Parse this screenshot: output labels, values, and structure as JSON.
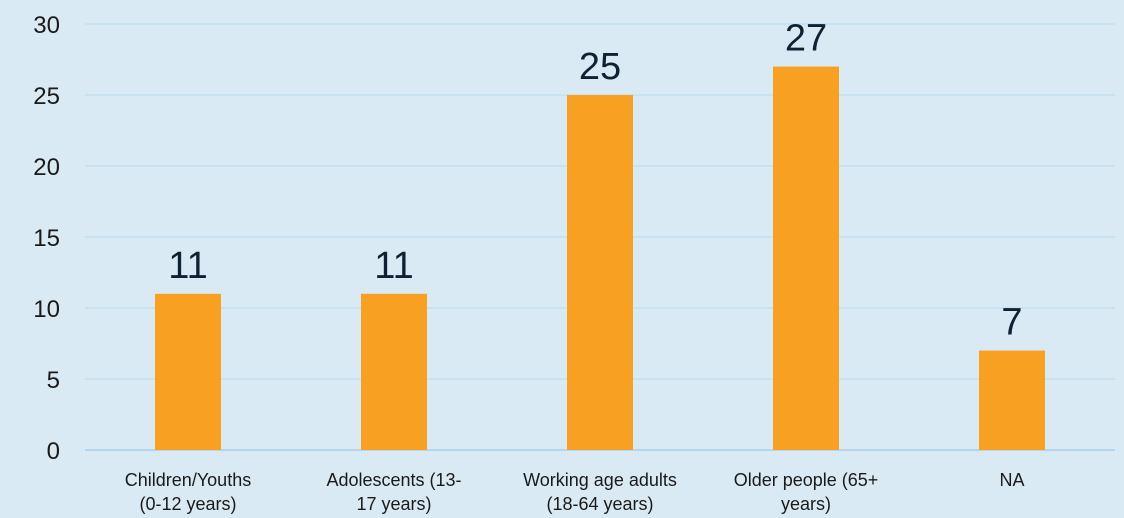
{
  "chart_data": {
    "type": "bar",
    "categories": [
      [
        "Children/Youths",
        "(0-12 years)"
      ],
      [
        "Adolescents (13-",
        "17 years)"
      ],
      [
        "Working age adults",
        "(18-64 years)"
      ],
      [
        "Older people (65+",
        "years)"
      ],
      [
        "NA"
      ]
    ],
    "values": [
      11,
      11,
      25,
      27,
      7
    ],
    "ylim": [
      0,
      30
    ],
    "yticks": [
      0,
      5,
      10,
      15,
      20,
      25,
      30
    ],
    "grid": true,
    "legend": "none",
    "colors": {
      "background": "#daeaf4",
      "bar": "#f7a021",
      "gridline": "#b7dbef",
      "baseline": "#8fc3e3",
      "data_label": "#0f2233",
      "tick_label": "#1a1a1a"
    }
  }
}
